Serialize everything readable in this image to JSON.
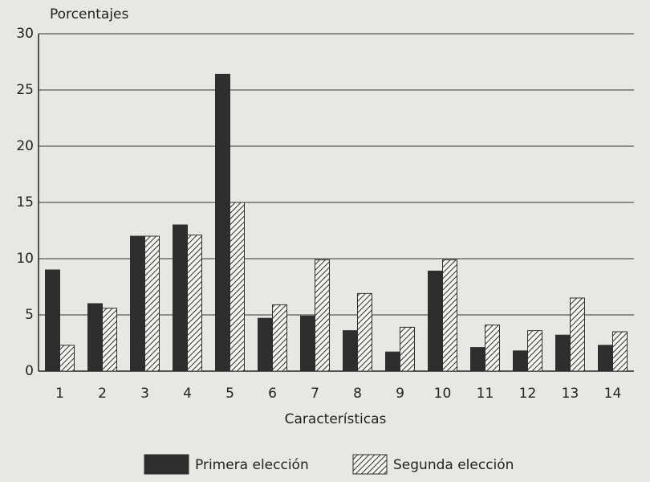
{
  "chart_data": {
    "type": "bar",
    "y_label": "Porcentajes",
    "x_label": "Características",
    "categories": [
      "1",
      "2",
      "3",
      "4",
      "5",
      "6",
      "7",
      "8",
      "9",
      "10",
      "11",
      "12",
      "13",
      "14"
    ],
    "series": [
      {
        "name": "Primera elección",
        "color": "#2e2e2e",
        "hatch": false,
        "values": [
          9,
          6,
          12,
          13,
          26.4,
          4.7,
          4.9,
          3.6,
          1.7,
          8.9,
          2.1,
          1.8,
          3.2,
          2.3
        ]
      },
      {
        "name": "Segunda elección",
        "color": "#2e2e2e",
        "hatch": true,
        "values": [
          2.3,
          5.6,
          12,
          12.1,
          15,
          5.9,
          9.9,
          6.9,
          3.9,
          9.9,
          4.1,
          3.6,
          6.5,
          3.5
        ]
      }
    ],
    "ylim": [
      0,
      30
    ],
    "yticks": [
      0,
      5,
      10,
      15,
      20,
      25,
      30
    ],
    "grid": true,
    "legend": "bottom"
  }
}
